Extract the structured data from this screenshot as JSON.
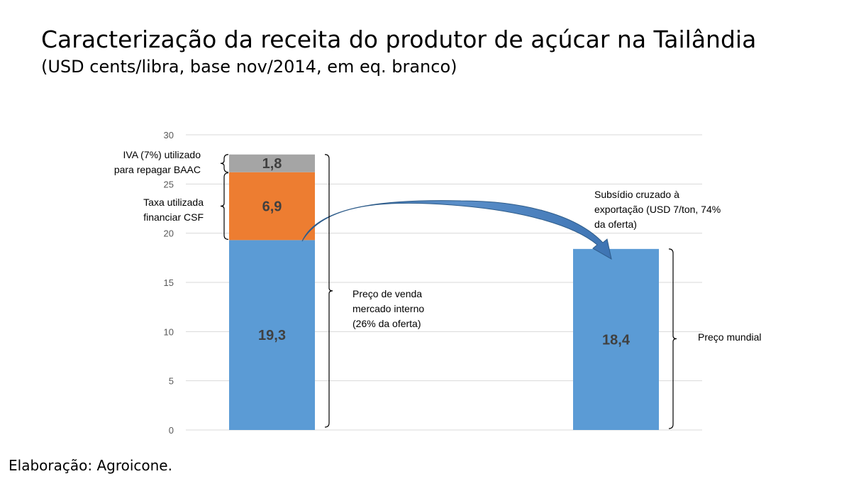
{
  "title": "Caracterização da receita do produtor de açúcar na Tailândia",
  "subtitle": "(USD cents/libra, base nov/2014, em eq. branco)",
  "credit": "Elaboração: Agroicone.",
  "chart_data": {
    "type": "bar",
    "stacked": true,
    "ylim": [
      0,
      30
    ],
    "yticks": [
      "0",
      "5",
      "10",
      "15",
      "20",
      "25",
      "30"
    ],
    "grid": true,
    "bars": [
      {
        "segments": [
          {
            "value": 19.3,
            "label": "19,3",
            "color": "#5b9bd5"
          },
          {
            "value": 6.9,
            "label": "6,9",
            "color": "#ed7d31"
          },
          {
            "value": 1.8,
            "label": "1,8",
            "color": "#a5a5a5"
          }
        ]
      },
      {
        "segments": [
          {
            "value": 18.4,
            "label": "18,4",
            "color": "#5b9bd5"
          }
        ]
      }
    ],
    "annotations": {
      "iva": [
        "IVA (7%) utilizado",
        "para repagar BAAC"
      ],
      "taxa": [
        "Taxa utilizada",
        "financiar CSF"
      ],
      "preco_venda": [
        "Preço de venda",
        "mercado interno",
        "(26% da oferta)"
      ],
      "subsidio": [
        "Subsídio cruzado à",
        "exportação (USD 7/ton, 74%",
        "da oferta)"
      ],
      "preco_mundial": [
        "Preço mundial"
      ]
    }
  }
}
